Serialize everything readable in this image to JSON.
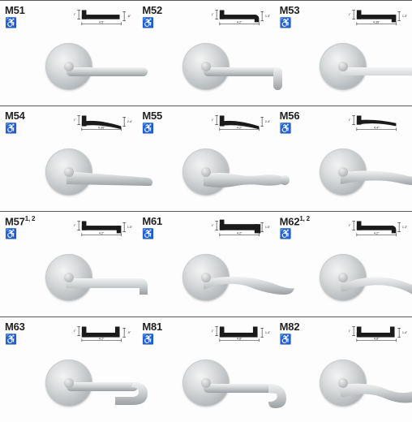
{
  "background_color": "#fdfdfd",
  "border_color": "#5a5a5a",
  "text_color": "#222222",
  "font_family": "Arial, Helvetica, sans-serif",
  "code_fontsize": 13,
  "ada_symbol": "♿",
  "metal_gradient": {
    "light": "#f2f3f3",
    "mid": "#cdd0d1",
    "dark": "#9ca0a3"
  },
  "profile_fill": "#1a1a1a",
  "profile_dim_fontsize": 4,
  "items": [
    {
      "code": "M51",
      "sup": "",
      "profile": {
        "shape": "straight_narrow",
        "width_label": "4.5\"",
        "height_label": ".6\"",
        "dim2": ".6\""
      },
      "lever": {
        "type": "straight_tube"
      }
    },
    {
      "code": "M52",
      "sup": "",
      "profile": {
        "shape": "L_rounded",
        "width_label": "4.2\"",
        "height_label": ".6\"",
        "dim2": "1.3\""
      },
      "lever": {
        "type": "L_tube"
      }
    },
    {
      "code": "M53",
      "sup": "",
      "profile": {
        "shape": "L_square",
        "width_label": "4.35\"",
        "height_label": ".6\"",
        "dim2": "1.3\""
      },
      "lever": {
        "type": "L_curved"
      }
    },
    {
      "code": "M54",
      "sup": "",
      "profile": {
        "shape": "curve_wide",
        "width_label": "4.35\"",
        "height_label": ".6\"",
        "dim2": "2.4\""
      },
      "lever": {
        "type": "flat_blade"
      }
    },
    {
      "code": "M55",
      "sup": "",
      "profile": {
        "shape": "curve_wide",
        "width_label": "4.2\"",
        "height_label": ".6\"",
        "dim2": "2.4\""
      },
      "lever": {
        "type": "ornate_spindle"
      }
    },
    {
      "code": "M56",
      "sup": "",
      "profile": {
        "shape": "curve_narrow",
        "width_label": "4.4\"",
        "height_label": ".5\"",
        "dim2": ""
      },
      "lever": {
        "type": "wave_blade"
      }
    },
    {
      "code": "M57",
      "sup": "1, 2",
      "profile": {
        "shape": "L_square",
        "width_label": "4.2\"",
        "height_label": ".6\"",
        "dim2": "1.5\""
      },
      "lever": {
        "type": "flat_return"
      }
    },
    {
      "code": "M61",
      "sup": "",
      "profile": {
        "shape": "L_square_thick",
        "width_label": "4.2\"",
        "height_label": ".6\"",
        "dim2": "1.5\""
      },
      "lever": {
        "type": "swoop_blade"
      }
    },
    {
      "code": "M62",
      "sup": "1, 2",
      "profile": {
        "shape": "L_rounded",
        "width_label": "4.2\"",
        "height_label": ".5\"",
        "dim2": "1.3\""
      },
      "lever": {
        "type": "arc_tube"
      }
    },
    {
      "code": "M63",
      "sup": "",
      "profile": {
        "shape": "u_channel",
        "width_label": "4.2\"",
        "height_label": ".5\"",
        "dim2": ".9\""
      },
      "lever": {
        "type": "u_return_tube"
      }
    },
    {
      "code": "M81",
      "sup": "",
      "profile": {
        "shape": "u_channel",
        "width_label": "4.8\"",
        "height_label": ".6\"",
        "dim2": "1.4\""
      },
      "lever": {
        "type": "j_tube"
      }
    },
    {
      "code": "M82",
      "sup": "",
      "profile": {
        "shape": "u_channel",
        "width_label": "4.8\"",
        "height_label": ".6\"",
        "dim2": "1.4\""
      },
      "lever": {
        "type": "s_tube"
      }
    }
  ]
}
